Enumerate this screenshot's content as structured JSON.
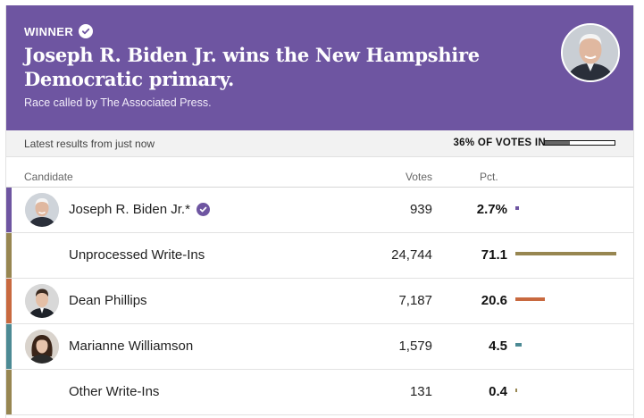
{
  "banner": {
    "winner_label": "WINNER",
    "headline": "Joseph R. Biden Jr. wins the New Hampshire Democratic primary.",
    "called_by": "Race called by The Associated Press.",
    "color": "#6e55a1"
  },
  "status": {
    "latest": "Latest results from just now",
    "votes_in": "36% OF VOTES IN",
    "reporting_fraction": 0.36
  },
  "table": {
    "headers": {
      "candidate": "Candidate",
      "votes": "Votes",
      "pct": "Pct."
    },
    "rows": [
      {
        "name": "Joseph R. Biden Jr.*",
        "votes": "939",
        "pct": "2.7%",
        "pct_value": 2.7,
        "color": "#6e55a1",
        "winner": true,
        "has_photo": true,
        "photo": "biden"
      },
      {
        "name": "Unprocessed Write-Ins",
        "votes": "24,744",
        "pct": "71.1",
        "pct_value": 71.1,
        "color": "#978651",
        "winner": false,
        "has_photo": false,
        "photo": ""
      },
      {
        "name": "Dean Phillips",
        "votes": "7,187",
        "pct": "20.6",
        "pct_value": 20.6,
        "color": "#c8693f",
        "winner": false,
        "has_photo": true,
        "photo": "phillips"
      },
      {
        "name": "Marianne Williamson",
        "votes": "1,579",
        "pct": "4.5",
        "pct_value": 4.5,
        "color": "#4c8a94",
        "winner": false,
        "has_photo": true,
        "photo": "williamson"
      },
      {
        "name": "Other Write-Ins",
        "votes": "131",
        "pct": "0.4",
        "pct_value": 0.4,
        "color": "#978651",
        "winner": false,
        "has_photo": false,
        "photo": ""
      }
    ]
  }
}
